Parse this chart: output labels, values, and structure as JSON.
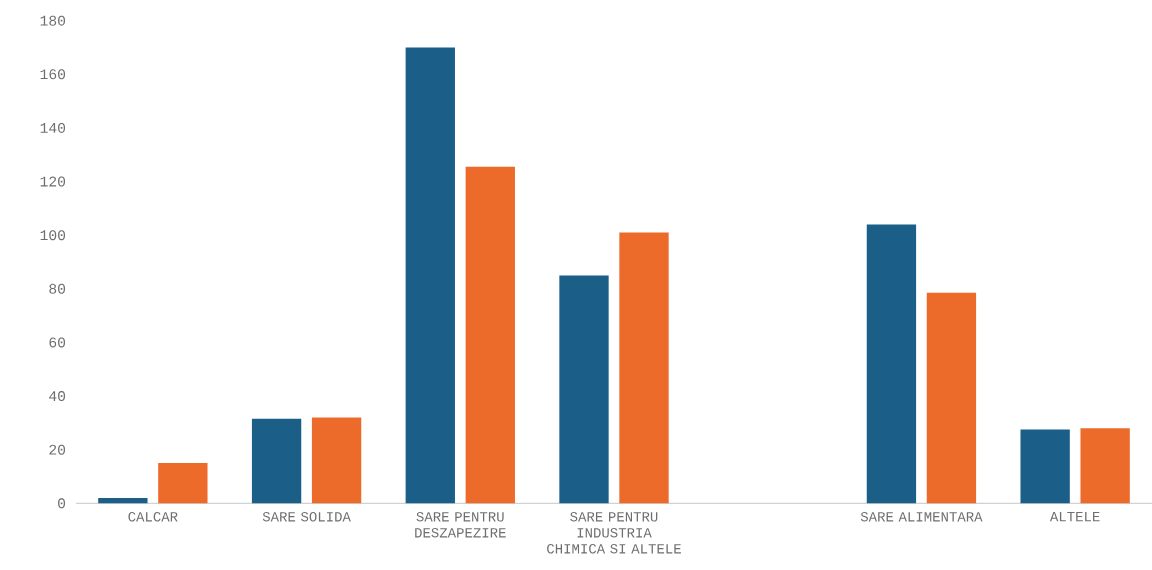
{
  "chart_data": {
    "type": "bar",
    "categories": [
      "CALCAR",
      "SARE SOLIDA",
      "SARE PENTRU DESZAPEZIRE",
      "SARE PENTRU INDUSTRIA CHIMICA SI ALTELE",
      null,
      "SARE ALIMENTARA",
      "ALTELE"
    ],
    "series": [
      {
        "color": "#1b5f88",
        "values": [
          2,
          31.5,
          170,
          85,
          null,
          104,
          27.5
        ]
      },
      {
        "color": "#ec6a2a",
        "values": [
          15,
          32,
          125.5,
          101,
          null,
          78.5,
          28
        ]
      }
    ],
    "ylim": [
      0,
      180
    ],
    "yticks": [
      0,
      20,
      40,
      60,
      80,
      100,
      120,
      140,
      160,
      180
    ],
    "grid": false,
    "legend": false
  }
}
